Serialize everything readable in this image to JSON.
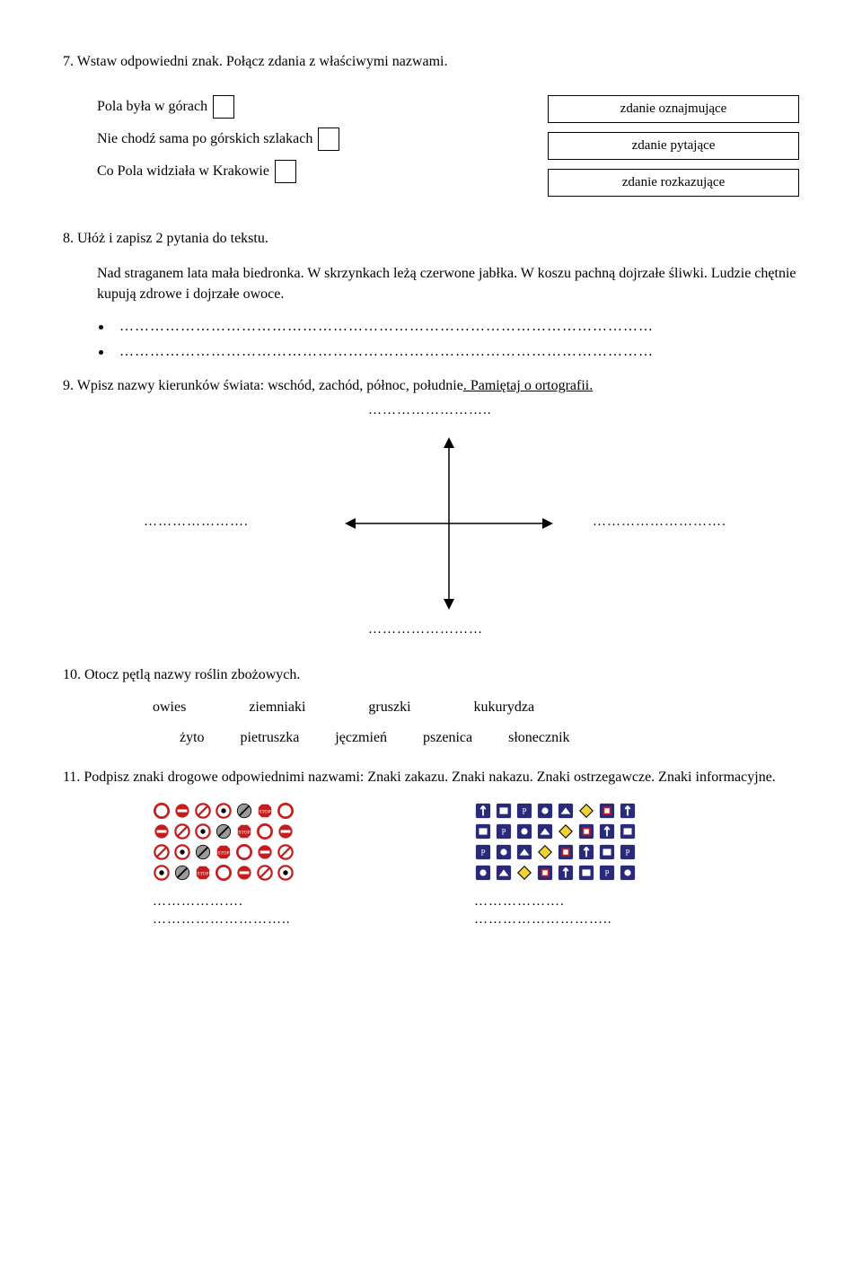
{
  "task7": {
    "title": "7. Wstaw odpowiedni znak. Połącz zdania z właściwymi nazwami.",
    "sentences": {
      "s1": "Pola była w górach",
      "s2": "Nie chodź sama po górskich szlakach",
      "s3": "Co Pola widziała w Krakowie"
    },
    "labels": {
      "l1": "zdanie oznajmujące",
      "l2": "zdanie pytające",
      "l3": "zdanie rozkazujące"
    }
  },
  "task8": {
    "title": "8. Ułóż i zapisz 2 pytania do tekstu.",
    "paragraph": "Nad straganem lata mała biedronka. W skrzynkach leżą czerwone jabłka. W koszu pachną dojrzałe śliwki. Ludzie chętnie kupują zdrowe i dojrzałe owoce.",
    "bullet_fill": "……………………………………………………………………………………………"
  },
  "task9": {
    "title_a": "9. Wpisz nazwy kierunków świata: wschód, zachód, północ, południe",
    "title_b": ". Pamiętaj o ortografii.",
    "blank_top": "……………………..",
    "blank_left": "………………….",
    "blank_right": "……………………….",
    "blank_bottom": "……………………",
    "arrow_color": "#000000"
  },
  "task10": {
    "title": "10. Otocz pętlą nazwy roślin zbożowych.",
    "row1": {
      "w1": "owies",
      "w2": "ziemniaki",
      "w3": "gruszki",
      "w4": "kukurydza"
    },
    "row2": {
      "w1": "żyto",
      "w2": "pietruszka",
      "w3": "jęczmień",
      "w4": "pszenica",
      "w5": "słonecznik"
    }
  },
  "task11": {
    "title": "11. Podpisz znaki drogowe odpowiednimi nazwami: Znaki zakazu. Znaki nakazu. Znaki ostrzegawcze. Znaki informacyjne.",
    "fill": "……………….",
    "fill2": "………………………..",
    "colors": {
      "red": "#c41d1d",
      "red_border": "#b31414",
      "white": "#ffffff",
      "blue": "#2a2a7a",
      "yellow": "#f2d22e",
      "black": "#000000",
      "grey": "#9a9a9a"
    }
  }
}
